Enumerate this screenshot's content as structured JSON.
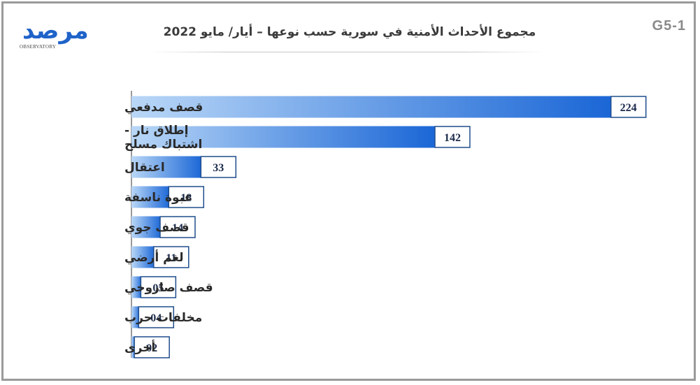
{
  "header": {
    "code": "G5-1",
    "title": "مجموع الأحداث الأمنية في سورية حسب نوعها – أيار/ مايو 2022",
    "logo_text": "مرصد",
    "logo_sub": "OBSERVATORY"
  },
  "colors": {
    "bar_dark": "#1a66d6",
    "bar_light": "#b9d7f7",
    "label_border": "#1f4d8c"
  },
  "chart_data": {
    "type": "bar",
    "orientation": "horizontal",
    "categories": [
      [
        "قصف مدفعي"
      ],
      [
        "إطلاق نار -",
        "اشتباك مسلح"
      ],
      [
        "اعتقال"
      ],
      [
        "عبوة ناسفة"
      ],
      [
        "قصف جوي"
      ],
      [
        "لغم أرضي"
      ],
      [
        "قصف صاروخي"
      ],
      [
        "مخلفات حرب"
      ],
      [
        "أخرى"
      ]
    ],
    "values": [
      224,
      142,
      33,
      18,
      14,
      11,
      5,
      4,
      2
    ],
    "value_labels": [
      "224",
      "142",
      "33",
      "18",
      "14",
      "11",
      "05",
      "04",
      "02"
    ],
    "title": "مجموع الأحداث الأمنية في سورية حسب نوعها – أيار/ مايو 2022",
    "xlabel": "",
    "ylabel": "",
    "grid": false,
    "legend": "none"
  }
}
